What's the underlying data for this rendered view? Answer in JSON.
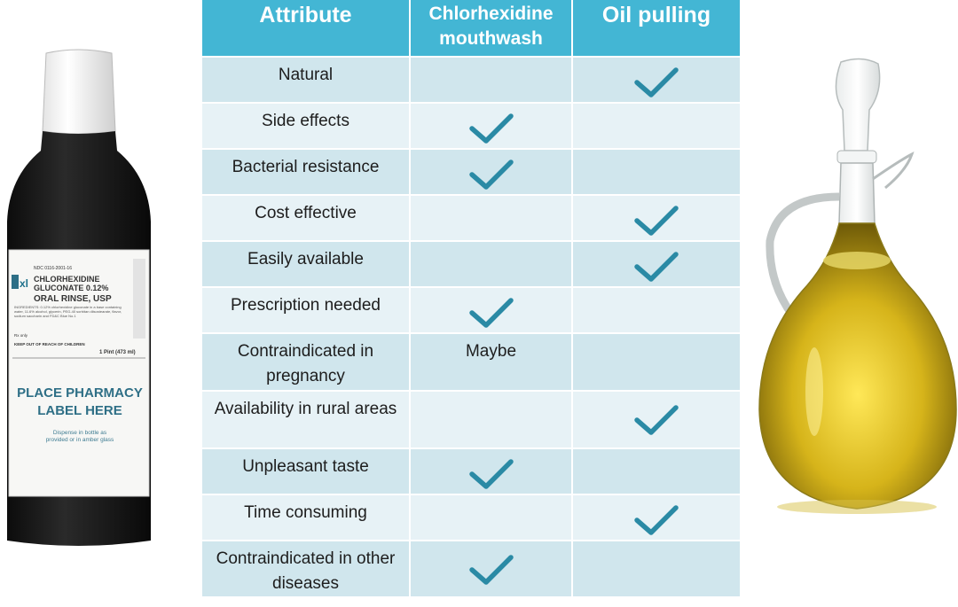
{
  "table": {
    "headers": [
      "Attribute",
      "Chlorhexidine mouthwash",
      "Oil pulling"
    ],
    "rows": [
      {
        "attribute": "Natural",
        "chlorhexidine": "",
        "oil_pulling": "check"
      },
      {
        "attribute": "Side effects",
        "chlorhexidine": "check",
        "oil_pulling": ""
      },
      {
        "attribute": "Bacterial resistance",
        "chlorhexidine": "check",
        "oil_pulling": ""
      },
      {
        "attribute": "Cost effective",
        "chlorhexidine": "",
        "oil_pulling": "check"
      },
      {
        "attribute": "Easily available",
        "chlorhexidine": "",
        "oil_pulling": "check"
      },
      {
        "attribute": "Prescription needed",
        "chlorhexidine": "check",
        "oil_pulling": ""
      },
      {
        "attribute": "Contraindicated in pregnancy",
        "chlorhexidine": "Maybe",
        "oil_pulling": ""
      },
      {
        "attribute": "Availability in rural areas",
        "chlorhexidine": "",
        "oil_pulling": "check"
      },
      {
        "attribute": "Unpleasant taste",
        "chlorhexidine": "check",
        "oil_pulling": ""
      },
      {
        "attribute": "Time consuming",
        "chlorhexidine": "",
        "oil_pulling": "check"
      },
      {
        "attribute": "Contraindicated in other diseases",
        "chlorhexidine": "check",
        "oil_pulling": ""
      }
    ]
  },
  "bottle_label": {
    "ndc": "NDC 0116-2001-16",
    "logo": "xl",
    "name_line1": "CHLORHEXIDINE",
    "name_line2": "GLUCONATE 0.12%",
    "name_line3": "ORAL RINSE, USP",
    "fine_print": "INGREDIENTS: 0.12% chlorhexidine gluconate in a base containing water, 11.6% alcohol, glycerin, PEG-40 sorbitan diisostearate, flavor, sodium saccharin and FD&C Blue No.1",
    "rx_only": "Rx only",
    "keep_out": "KEEP OUT OF REACH OF CHILDREN",
    "volume": "1 Pint (473 ml)",
    "pharmacy_line1": "PLACE PHARMACY",
    "pharmacy_line2": "LABEL HERE",
    "dispense_line1": "Dispense in bottle as",
    "dispense_line2": "provided or in amber glass"
  },
  "colors": {
    "header": "#43b6d4",
    "row_odd": "#d0e6ed",
    "row_even": "#e7f2f6",
    "check": "#2a8aa5",
    "oil": "#d3b418"
  },
  "icons": {
    "check": "check-icon"
  }
}
